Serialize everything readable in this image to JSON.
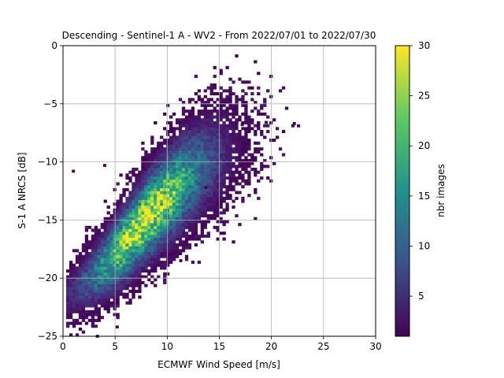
{
  "chart_data": {
    "type": "heatmap",
    "title": "Descending - Sentinel-1 A - WV2 - From 2022/07/01 to 2022/07/30",
    "xlabel": "ECMWF Wind Speed [m/s]",
    "ylabel": "S-1 A NRCS [dB]",
    "xlim": [
      0,
      30
    ],
    "ylim": [
      -25,
      0
    ],
    "x_ticks": [
      0,
      5,
      10,
      15,
      20,
      25,
      30
    ],
    "y_ticks": [
      0,
      -5,
      -10,
      -15,
      -20,
      -25
    ],
    "grid": true,
    "bin_width_x": 0.3,
    "bin_height_y": 0.25,
    "colorbar": {
      "label": "nbr images",
      "colormap": "viridis",
      "range": [
        1,
        30
      ],
      "ticks": [
        5,
        10,
        15,
        20,
        25,
        30
      ]
    },
    "density_model": {
      "trend": [
        {
          "x": 0.5,
          "y": -21.5
        },
        {
          "x": 3,
          "y": -19.8
        },
        {
          "x": 6,
          "y": -17.0
        },
        {
          "x": 8,
          "y": -14.8
        },
        {
          "x": 10,
          "y": -13.0
        },
        {
          "x": 12,
          "y": -11.3
        },
        {
          "x": 14,
          "y": -10.0
        },
        {
          "x": 16,
          "y": -9.0
        },
        {
          "x": 18,
          "y": -8.2
        },
        {
          "x": 20,
          "y": -7.6
        },
        {
          "x": 22,
          "y": -7.0
        }
      ],
      "peak_x": 8,
      "peak_y": -14.8,
      "peak_count": 28,
      "x_min": 0.2,
      "x_max": 22.8,
      "outliers": [
        {
          "x": 4,
          "y": -10.3
        },
        {
          "x": 1,
          "y": -10.8
        },
        {
          "x": 3.3,
          "y": -25.0
        },
        {
          "x": 5.2,
          "y": -24.2
        },
        {
          "x": 17.2,
          "y": -6.8
        },
        {
          "x": 19.5,
          "y": -6.6
        },
        {
          "x": 22.2,
          "y": -6.7
        },
        {
          "x": 22.6,
          "y": -6.9
        },
        {
          "x": 13.7,
          "y": -12.2
        },
        {
          "x": 11.3,
          "y": -18.5
        }
      ]
    }
  }
}
